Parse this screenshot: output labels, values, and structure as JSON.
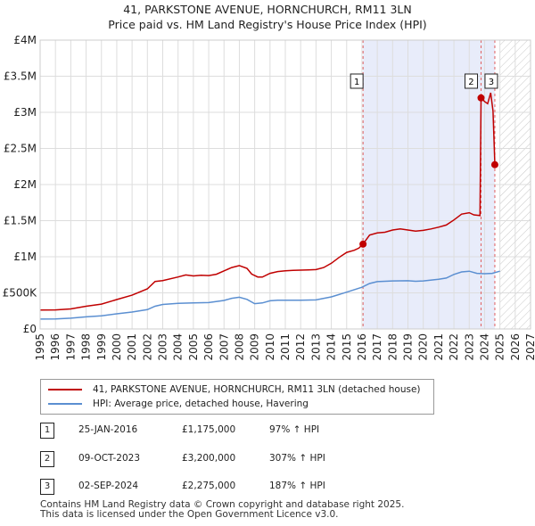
{
  "chart_data": {
    "type": "line",
    "title": "41, PARKSTONE AVENUE, HORNCHURCH, RM11 3LN",
    "subtitle": "Price paid vs. HM Land Registry's House Price Index (HPI)",
    "xlim": [
      1995,
      2027
    ],
    "ylim": [
      0,
      4000000
    ],
    "x_ticks": [
      "1995",
      "1996",
      "1997",
      "1998",
      "1999",
      "2000",
      "2001",
      "2002",
      "2003",
      "2004",
      "2005",
      "2006",
      "2007",
      "2008",
      "2009",
      "2010",
      "2011",
      "2012",
      "2013",
      "2014",
      "2015",
      "2016",
      "2017",
      "2018",
      "2019",
      "2020",
      "2021",
      "2022",
      "2023",
      "2024",
      "2025",
      "2026",
      "2027"
    ],
    "y_ticks": [
      {
        "value": 0,
        "label": "£0"
      },
      {
        "value": 500000,
        "label": "£500K"
      },
      {
        "value": 1000000,
        "label": "£1M"
      },
      {
        "value": 1500000,
        "label": "£1.5M"
      },
      {
        "value": 2000000,
        "label": "£2M"
      },
      {
        "value": 2500000,
        "label": "£2.5M"
      },
      {
        "value": 3000000,
        "label": "£3M"
      },
      {
        "value": 3500000,
        "label": "£3.5M"
      },
      {
        "value": 4000000,
        "label": "£4M"
      }
    ],
    "grid": true,
    "shaded_span": [
      2016.07,
      2024.67
    ],
    "hatched_from": 2025.0,
    "series": [
      {
        "name": "41, PARKSTONE AVENUE, HORNCHURCH, RM11 3LN (detached house)",
        "color": "#c00000",
        "points": [
          [
            1995.0,
            262000
          ],
          [
            1996.0,
            264000
          ],
          [
            1997.0,
            278000
          ],
          [
            1998.0,
            315000
          ],
          [
            1999.0,
            345000
          ],
          [
            2000.0,
            408000
          ],
          [
            2001.0,
            468000
          ],
          [
            2002.0,
            555000
          ],
          [
            2002.5,
            658000
          ],
          [
            2003.0,
            670000
          ],
          [
            2004.0,
            720000
          ],
          [
            2004.5,
            748000
          ],
          [
            2005.0,
            735000
          ],
          [
            2005.5,
            745000
          ],
          [
            2006.0,
            740000
          ],
          [
            2006.5,
            758000
          ],
          [
            2007.0,
            805000
          ],
          [
            2007.5,
            850000
          ],
          [
            2008.0,
            878000
          ],
          [
            2008.5,
            840000
          ],
          [
            2008.8,
            760000
          ],
          [
            2009.2,
            720000
          ],
          [
            2009.5,
            718000
          ],
          [
            2010.0,
            770000
          ],
          [
            2010.5,
            795000
          ],
          [
            2011.0,
            805000
          ],
          [
            2011.5,
            812000
          ],
          [
            2012.0,
            815000
          ],
          [
            2012.5,
            818000
          ],
          [
            2013.0,
            822000
          ],
          [
            2013.5,
            850000
          ],
          [
            2014.0,
            910000
          ],
          [
            2014.5,
            990000
          ],
          [
            2015.0,
            1060000
          ],
          [
            2015.5,
            1090000
          ],
          [
            2015.8,
            1120000
          ],
          [
            2016.07,
            1175000
          ],
          [
            2016.5,
            1300000
          ],
          [
            2017.0,
            1330000
          ],
          [
            2017.5,
            1340000
          ],
          [
            2018.0,
            1370000
          ],
          [
            2018.5,
            1385000
          ],
          [
            2019.0,
            1370000
          ],
          [
            2019.5,
            1355000
          ],
          [
            2020.0,
            1365000
          ],
          [
            2020.5,
            1385000
          ],
          [
            2021.0,
            1410000
          ],
          [
            2021.5,
            1440000
          ],
          [
            2022.0,
            1510000
          ],
          [
            2022.5,
            1590000
          ],
          [
            2023.0,
            1610000
          ],
          [
            2023.3,
            1580000
          ],
          [
            2023.7,
            1570000
          ],
          [
            2023.77,
            3200000
          ],
          [
            2024.0,
            3150000
          ],
          [
            2024.2,
            3120000
          ],
          [
            2024.4,
            3270000
          ],
          [
            2024.55,
            3020000
          ],
          [
            2024.67,
            2275000
          ]
        ]
      },
      {
        "name": "HPI: Average price, detached house, Havering",
        "color": "#5b8fd1",
        "points": [
          [
            1995.0,
            137000
          ],
          [
            1996.0,
            140000
          ],
          [
            1997.0,
            150000
          ],
          [
            1998.0,
            168000
          ],
          [
            1999.0,
            182000
          ],
          [
            2000.0,
            210000
          ],
          [
            2001.0,
            234000
          ],
          [
            2002.0,
            268000
          ],
          [
            2002.5,
            315000
          ],
          [
            2003.0,
            340000
          ],
          [
            2004.0,
            355000
          ],
          [
            2005.0,
            362000
          ],
          [
            2006.0,
            365000
          ],
          [
            2007.0,
            395000
          ],
          [
            2007.5,
            425000
          ],
          [
            2008.0,
            440000
          ],
          [
            2008.5,
            410000
          ],
          [
            2009.0,
            350000
          ],
          [
            2009.5,
            360000
          ],
          [
            2010.0,
            390000
          ],
          [
            2010.5,
            398000
          ],
          [
            2011.0,
            398000
          ],
          [
            2012.0,
            398000
          ],
          [
            2013.0,
            402000
          ],
          [
            2014.0,
            445000
          ],
          [
            2015.0,
            510000
          ],
          [
            2016.0,
            578000
          ],
          [
            2016.5,
            630000
          ],
          [
            2017.0,
            655000
          ],
          [
            2018.0,
            665000
          ],
          [
            2019.0,
            668000
          ],
          [
            2019.5,
            660000
          ],
          [
            2020.0,
            665000
          ],
          [
            2021.0,
            688000
          ],
          [
            2021.5,
            705000
          ],
          [
            2022.0,
            755000
          ],
          [
            2022.5,
            790000
          ],
          [
            2023.0,
            800000
          ],
          [
            2023.5,
            770000
          ],
          [
            2024.0,
            765000
          ],
          [
            2024.5,
            770000
          ],
          [
            2025.0,
            800000
          ]
        ]
      }
    ],
    "transactions": [
      {
        "label": "1",
        "x": 2016.07,
        "price": 1175000,
        "date": "25-JAN-2016",
        "price_text": "£1,175,000",
        "hpi_text": "97% ↑ HPI"
      },
      {
        "label": "2",
        "x": 2023.77,
        "price": 3200000,
        "date": "09-OCT-2023",
        "price_text": "£3,200,000",
        "hpi_text": "307% ↑ HPI"
      },
      {
        "label": "3",
        "x": 2024.67,
        "price": 2275000,
        "date": "02-SEP-2024",
        "price_text": "£2,275,000",
        "hpi_text": "187% ↑ HPI"
      }
    ]
  },
  "legend": {
    "property_label": "41, PARKSTONE AVENUE, HORNCHURCH, RM11 3LN (detached house)",
    "hpi_label": "HPI: Average price, detached house, Havering"
  },
  "footer": {
    "line1": "Contains HM Land Registry data © Crown copyright and database right 2025.",
    "line2": "This data is licensed under the Open Government Licence v3.0."
  }
}
